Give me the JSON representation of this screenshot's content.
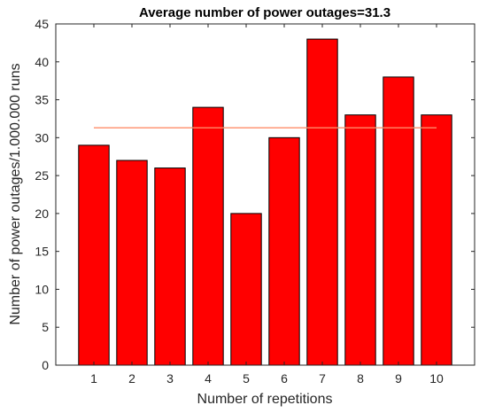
{
  "chart_data": {
    "type": "bar",
    "title": "Average number of power outages=31.3",
    "xlabel": "Number of repetitions",
    "ylabel": "Number of power outages/1.000.000 runs",
    "categories": [
      "1",
      "2",
      "3",
      "4",
      "5",
      "6",
      "7",
      "8",
      "9",
      "10"
    ],
    "values": [
      29,
      27,
      26,
      34,
      20,
      30,
      43,
      33,
      38,
      33
    ],
    "yticks": [
      "0",
      "5",
      "10",
      "15",
      "20",
      "25",
      "30",
      "35",
      "40",
      "45"
    ],
    "xlim": [
      0,
      11
    ],
    "ylim": [
      0,
      45
    ],
    "average_line": 31.3,
    "grid": false,
    "bar_color": "#ff0000",
    "bar_edge_color": "#000000",
    "average_line_color": "#ff8c69"
  }
}
